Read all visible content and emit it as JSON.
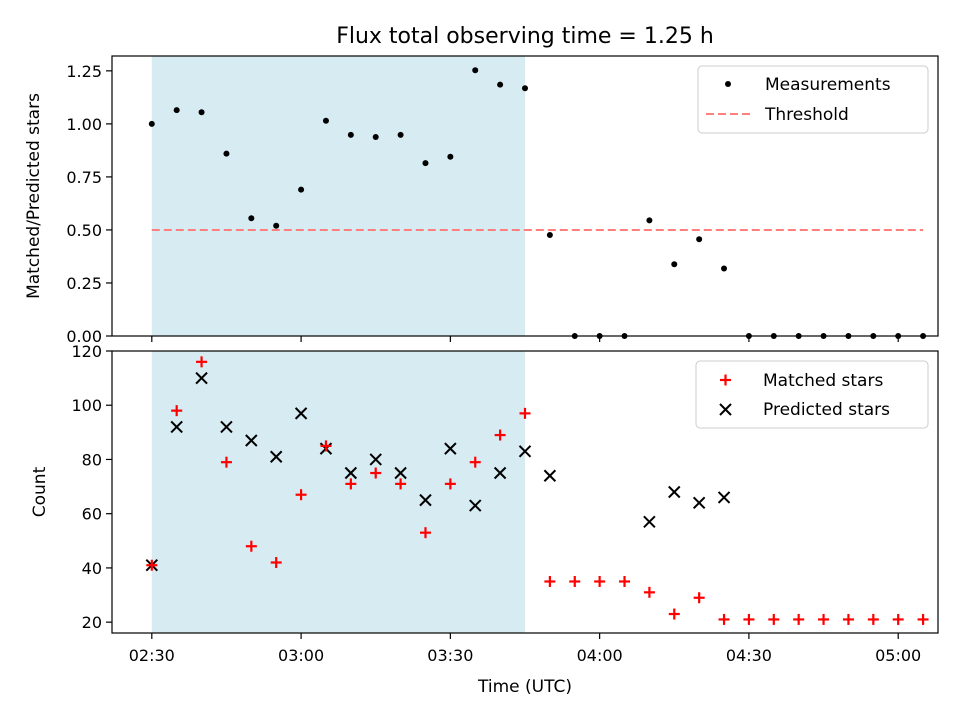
{
  "colors": {
    "measurement": "#000000",
    "threshold": "#ff7f7f",
    "matched": "#ff0000",
    "predicted": "#000000",
    "highlight": "#add8e6"
  },
  "chart_data": [
    {
      "type": "scatter",
      "title": "Flux total observing time = 1.25 h",
      "xlabel": "",
      "ylabel": "Matched/Predicted stars",
      "xlim": [
        "02:22",
        "05:08"
      ],
      "ylim": [
        0,
        1.32
      ],
      "yticks": [
        0.0,
        0.25,
        0.5,
        0.75,
        1.0,
        1.25
      ],
      "ytick_labels": [
        "0.00",
        "0.25",
        "0.50",
        "0.75",
        "1.00",
        "1.25"
      ],
      "highlight_span": [
        "02:30",
        "03:45"
      ],
      "legend_position": "top-right",
      "series": [
        {
          "name": "Measurements",
          "kind": "points",
          "x": [
            "02:30",
            "02:35",
            "02:40",
            "02:45",
            "02:50",
            "02:55",
            "03:00",
            "03:05",
            "03:10",
            "03:15",
            "03:20",
            "03:25",
            "03:30",
            "03:35",
            "03:40",
            "03:45",
            "03:50",
            "03:55",
            "04:00",
            "04:05",
            "04:10",
            "04:15",
            "04:20",
            "04:25",
            "04:30",
            "04:35",
            "04:40",
            "04:45",
            "04:50",
            "04:55",
            "05:00",
            "05:05"
          ],
          "y": [
            1.0,
            1.065,
            1.055,
            0.86,
            0.555,
            0.52,
            0.69,
            1.015,
            0.948,
            0.938,
            0.948,
            0.815,
            0.845,
            1.253,
            1.185,
            1.168,
            0.476,
            0.0,
            0.0,
            0.0,
            0.545,
            0.338,
            0.456,
            0.318,
            0.0,
            0.0,
            0.0,
            0.0,
            0.0,
            0.0,
            0.0,
            0.0
          ]
        },
        {
          "name": "Threshold",
          "kind": "dashed-line",
          "x": [
            "02:30",
            "05:05"
          ],
          "y": [
            0.5,
            0.5
          ]
        }
      ]
    },
    {
      "type": "scatter",
      "title": "",
      "xlabel": "Time (UTC)",
      "ylabel": "Count",
      "xlim": [
        "02:22",
        "05:08"
      ],
      "ylim": [
        16,
        120
      ],
      "yticks": [
        20,
        40,
        60,
        80,
        100,
        120
      ],
      "ytick_labels": [
        "20",
        "40",
        "60",
        "80",
        "100",
        "120"
      ],
      "xticks": [
        "02:30",
        "03:00",
        "03:30",
        "04:00",
        "04:30",
        "05:00"
      ],
      "xtick_labels": [
        "02:30",
        "03:00",
        "03:30",
        "04:00",
        "04:30",
        "05:00"
      ],
      "highlight_span": [
        "02:30",
        "03:45"
      ],
      "legend_position": "top-right",
      "series": [
        {
          "name": "Matched stars",
          "kind": "plus",
          "x": [
            "02:30",
            "02:35",
            "02:40",
            "02:45",
            "02:50",
            "02:55",
            "03:00",
            "03:05",
            "03:10",
            "03:15",
            "03:20",
            "03:25",
            "03:30",
            "03:35",
            "03:40",
            "03:45",
            "03:50",
            "03:55",
            "04:00",
            "04:05",
            "04:10",
            "04:15",
            "04:20",
            "04:25",
            "04:30",
            "04:35",
            "04:40",
            "04:45",
            "04:50",
            "04:55",
            "05:00",
            "05:05"
          ],
          "y": [
            41,
            98,
            116,
            79,
            48,
            42,
            67,
            85,
            71,
            75,
            71,
            53,
            71,
            79,
            89,
            97,
            35,
            35,
            35,
            35,
            31,
            23,
            29,
            21,
            21,
            21,
            21,
            21,
            21,
            21,
            21,
            21
          ]
        },
        {
          "name": "Predicted stars",
          "kind": "x",
          "x": [
            "02:30",
            "02:35",
            "02:40",
            "02:45",
            "02:50",
            "02:55",
            "03:00",
            "03:05",
            "03:10",
            "03:15",
            "03:20",
            "03:25",
            "03:30",
            "03:35",
            "03:40",
            "03:45",
            "03:50",
            "04:10",
            "04:15",
            "04:20",
            "04:25"
          ],
          "y": [
            41,
            92,
            110,
            92,
            87,
            81,
            97,
            84,
            75,
            80,
            75,
            65,
            84,
            63,
            75,
            83,
            74,
            57,
            68,
            64,
            66
          ]
        }
      ]
    }
  ]
}
